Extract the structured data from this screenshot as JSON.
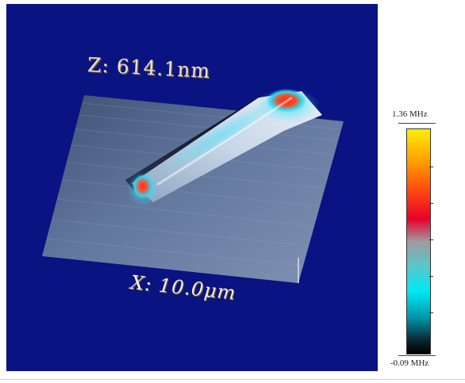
{
  "figure": {
    "z_label": "Z: 614.1nm",
    "x_label": "X: 10.0μm",
    "colorbar": {
      "max_label": "1.36 MHz",
      "min_label": "-0.09 MHz",
      "max_value": 1.36,
      "min_value": -0.09,
      "unit": "MHz",
      "colormap": [
        "#000000",
        "#0b2730",
        "#0096a8",
        "#00e8f5",
        "#58c8c8",
        "#a09aa0",
        "#e8002a",
        "#ff4a10",
        "#ffa000",
        "#ffef00"
      ]
    },
    "background_color": "#0a1382",
    "surface_color": "#5a6f96"
  }
}
